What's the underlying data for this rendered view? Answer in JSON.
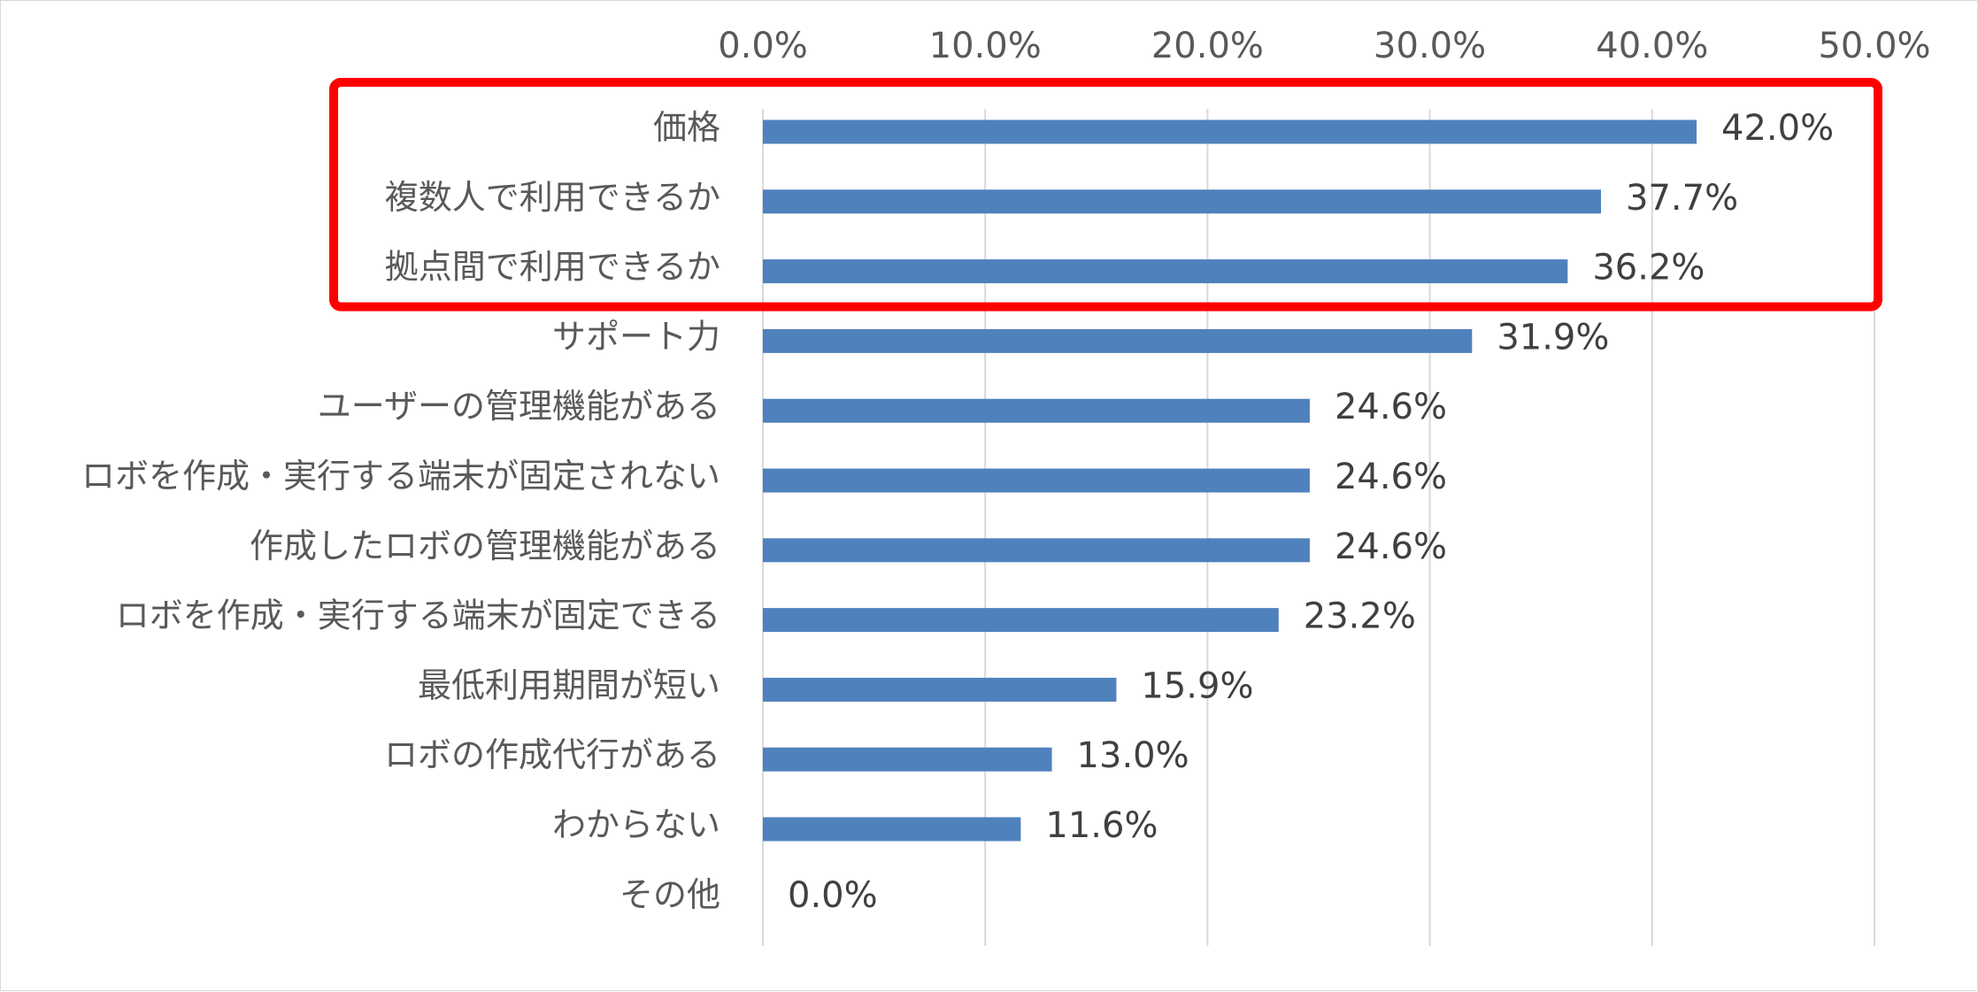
{
  "chart_data": {
    "type": "bar",
    "orientation": "horizontal",
    "categories": [
      "価格",
      "複数人で利用できるか",
      "拠点間で利用できるか",
      "サポート力",
      "ユーザーの管理機能がある",
      "ロボを作成・実行する端末が固定されない",
      "作成したロボの管理機能がある",
      "ロボを作成・実行する端末が固定できる",
      "最低利用期間が短い",
      "ロボの作成代行がある",
      "わからない",
      "その他"
    ],
    "values": [
      42.0,
      37.7,
      36.2,
      31.9,
      24.6,
      24.6,
      24.6,
      23.2,
      15.9,
      13.0,
      11.6,
      0.0
    ],
    "data_labels": [
      "42.0%",
      "37.7%",
      "36.2%",
      "31.9%",
      "24.6%",
      "24.6%",
      "24.6%",
      "23.2%",
      "15.9%",
      "13.0%",
      "11.6%",
      "0.0%"
    ],
    "x_ticks": [
      0,
      10,
      20,
      30,
      40,
      50
    ],
    "x_tick_labels": [
      "0.0%",
      "10.0%",
      "20.0%",
      "30.0%",
      "40.0%",
      "50.0%"
    ],
    "xlim": [
      0,
      50
    ],
    "x_axis_position": "top",
    "grid": true,
    "legend": "none",
    "title": "",
    "xlabel": "",
    "ylabel": "",
    "highlight": {
      "categories": [
        "価格",
        "複数人で利用できるか",
        "拠点間で利用できるか"
      ],
      "color": "#ff0000"
    },
    "colors": {
      "bar": "#4f81bd",
      "grid": "#d9d9d9",
      "tick_text": "#595959",
      "data_label_text": "#404040"
    }
  }
}
